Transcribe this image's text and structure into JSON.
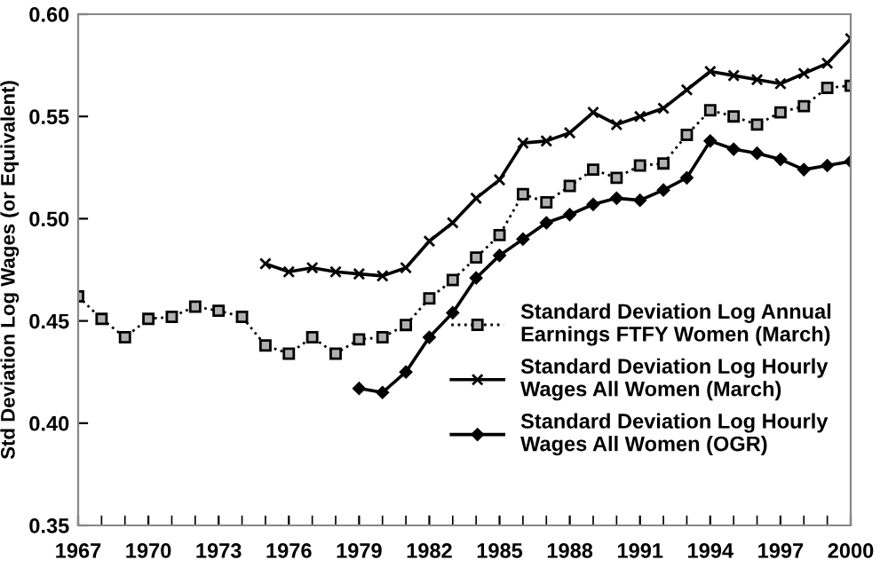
{
  "chart_data": {
    "type": "line",
    "ylabel": "Std Deviation Log Wages (or Equivalent)",
    "xlim": [
      1967,
      2000
    ],
    "xticks": [
      1967,
      1970,
      1973,
      1976,
      1979,
      1982,
      1985,
      1988,
      1991,
      1994,
      1997,
      2000
    ],
    "ylim": [
      0.35,
      0.6
    ],
    "yticks": [
      {
        "value": 0.35,
        "label": "0.35"
      },
      {
        "value": 0.4,
        "label": "0.40"
      },
      {
        "value": 0.45,
        "label": "0.45"
      },
      {
        "value": 0.5,
        "label": "0.50"
      },
      {
        "value": 0.55,
        "label": "0.55"
      },
      {
        "value": 0.6,
        "label": "0.60"
      }
    ],
    "grid": false,
    "legend": "lower right",
    "series": [
      {
        "name": "Standard Deviation Log Annual Earnings FTFY Women (March)",
        "color": "#000000",
        "marker": "square",
        "line_style": "dotted",
        "x": [
          1967,
          1968,
          1969,
          1970,
          1971,
          1972,
          1973,
          1974,
          1975,
          1976,
          1977,
          1978,
          1979,
          1980,
          1981,
          1982,
          1983,
          1984,
          1985,
          1986,
          1987,
          1988,
          1989,
          1990,
          1991,
          1992,
          1993,
          1994,
          1995,
          1996,
          1997,
          1998,
          1999,
          2000
        ],
        "values": [
          0.462,
          0.451,
          0.442,
          0.451,
          0.452,
          0.457,
          0.455,
          0.452,
          0.438,
          0.434,
          0.442,
          0.434,
          0.441,
          0.442,
          0.448,
          0.461,
          0.47,
          0.481,
          0.492,
          0.512,
          0.508,
          0.516,
          0.524,
          0.52,
          0.526,
          0.527,
          0.541,
          0.553,
          0.55,
          0.546,
          0.552,
          0.555,
          0.564,
          0.565
        ]
      },
      {
        "name": "Standard Deviation Log Hourly Wages All Women (March)",
        "color": "#000000",
        "marker": "cross",
        "line_style": "solid",
        "x": [
          1975,
          1976,
          1977,
          1978,
          1979,
          1980,
          1981,
          1982,
          1983,
          1984,
          1985,
          1986,
          1987,
          1988,
          1989,
          1990,
          1991,
          1992,
          1993,
          1994,
          1995,
          1996,
          1997,
          1998,
          1999,
          2000
        ],
        "values": [
          0.478,
          0.474,
          0.476,
          0.474,
          0.473,
          0.472,
          0.476,
          0.489,
          0.498,
          0.51,
          0.519,
          0.537,
          0.538,
          0.542,
          0.552,
          0.546,
          0.55,
          0.554,
          0.563,
          0.572,
          0.57,
          0.568,
          0.566,
          0.571,
          0.576,
          0.588
        ]
      },
      {
        "name": "Standard Deviation Log Hourly Wages All Women (OGR)",
        "color": "#000000",
        "marker": "diamond",
        "line_style": "solid",
        "x": [
          1979,
          1980,
          1981,
          1982,
          1983,
          1984,
          1985,
          1986,
          1987,
          1988,
          1989,
          1990,
          1991,
          1992,
          1993,
          1994,
          1995,
          1996,
          1997,
          1998,
          1999,
          2000
        ],
        "values": [
          0.417,
          0.415,
          0.425,
          0.442,
          0.454,
          0.471,
          0.482,
          0.49,
          0.498,
          0.502,
          0.507,
          0.51,
          0.509,
          0.514,
          0.52,
          0.538,
          0.534,
          0.532,
          0.529,
          0.524,
          0.526,
          0.528
        ]
      }
    ]
  }
}
